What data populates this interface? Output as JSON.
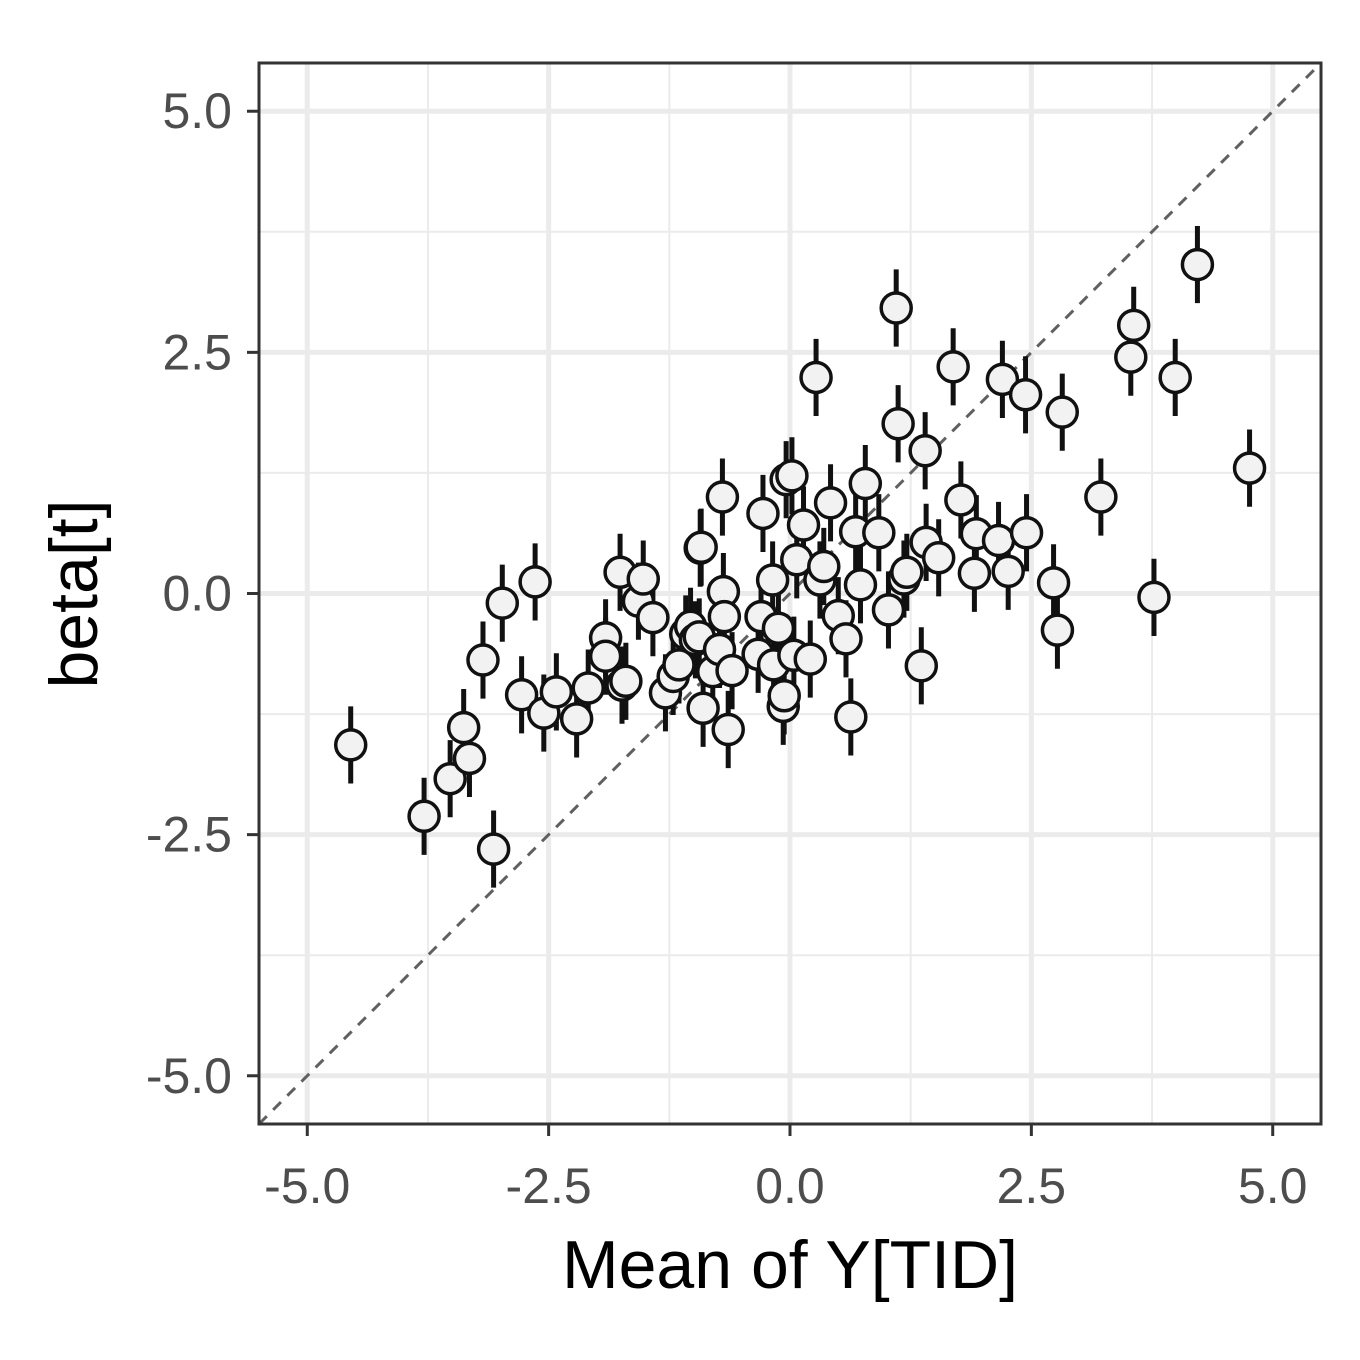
{
  "chart_data": {
    "type": "scatter",
    "title": "",
    "xlabel": "Mean of Y[TID]",
    "ylabel": "beta[t]",
    "xlim": [
      -5.5,
      5.5
    ],
    "ylim": [
      -5.5,
      5.5
    ],
    "x_ticks": [
      "-5.0",
      "-2.5",
      "0.0",
      "2.5",
      "5.0"
    ],
    "y_ticks": [
      "-5.0",
      "-2.5",
      "0.0",
      "2.5",
      "5.0"
    ],
    "x_tick_values": [
      -5,
      -2.5,
      0,
      2.5,
      5
    ],
    "y_tick_values": [
      -5,
      -2.5,
      0,
      2.5,
      5
    ],
    "grid": true,
    "reference_line": "y = x (dashed)",
    "error_bar_halfwidth": 0.4,
    "points": [
      {
        "x": -4.55,
        "y": -1.57
      },
      {
        "x": -3.79,
        "y": -2.31
      },
      {
        "x": -3.52,
        "y": -1.92
      },
      {
        "x": -3.38,
        "y": -1.39
      },
      {
        "x": -3.32,
        "y": -1.71
      },
      {
        "x": -3.18,
        "y": -0.69
      },
      {
        "x": -3.07,
        "y": -2.65
      },
      {
        "x": -2.98,
        "y": -0.1
      },
      {
        "x": -2.78,
        "y": -1.05
      },
      {
        "x": -2.64,
        "y": 0.12
      },
      {
        "x": -2.55,
        "y": -1.24
      },
      {
        "x": -2.42,
        "y": -1.02
      },
      {
        "x": -2.21,
        "y": -1.3
      },
      {
        "x": -2.09,
        "y": -0.98
      },
      {
        "x": -1.91,
        "y": -0.46
      },
      {
        "x": -1.91,
        "y": -0.65
      },
      {
        "x": -1.76,
        "y": 0.22
      },
      {
        "x": -1.74,
        "y": -0.95
      },
      {
        "x": -1.7,
        "y": -0.91
      },
      {
        "x": -1.57,
        "y": -0.08
      },
      {
        "x": -1.52,
        "y": 0.15
      },
      {
        "x": -1.42,
        "y": -0.25
      },
      {
        "x": -1.29,
        "y": -1.03
      },
      {
        "x": -1.21,
        "y": -0.86
      },
      {
        "x": -1.15,
        "y": -0.74
      },
      {
        "x": -1.08,
        "y": -0.42
      },
      {
        "x": -1.03,
        "y": -0.34
      },
      {
        "x": -0.98,
        "y": -0.48
      },
      {
        "x": -0.94,
        "y": -0.45
      },
      {
        "x": -0.93,
        "y": 0.47
      },
      {
        "x": -0.92,
        "y": 0.48
      },
      {
        "x": -0.9,
        "y": -1.19
      },
      {
        "x": -0.8,
        "y": -0.81
      },
      {
        "x": -0.73,
        "y": -0.58
      },
      {
        "x": -0.7,
        "y": 1.0
      },
      {
        "x": -0.69,
        "y": 0.02
      },
      {
        "x": -0.68,
        "y": -0.24
      },
      {
        "x": -0.64,
        "y": -1.41
      },
      {
        "x": -0.6,
        "y": -0.8
      },
      {
        "x": -0.33,
        "y": -0.63
      },
      {
        "x": -0.3,
        "y": -0.24
      },
      {
        "x": -0.28,
        "y": 0.83
      },
      {
        "x": -0.18,
        "y": 0.14
      },
      {
        "x": -0.17,
        "y": -0.74
      },
      {
        "x": -0.12,
        "y": -0.36
      },
      {
        "x": -0.07,
        "y": -1.17
      },
      {
        "x": -0.06,
        "y": -1.06
      },
      {
        "x": -0.04,
        "y": 1.18
      },
      {
        "x": 0.02,
        "y": 1.22
      },
      {
        "x": 0.04,
        "y": -0.64
      },
      {
        "x": 0.07,
        "y": 0.35
      },
      {
        "x": 0.14,
        "y": 0.71
      },
      {
        "x": 0.21,
        "y": -0.68
      },
      {
        "x": 0.27,
        "y": 2.24
      },
      {
        "x": 0.31,
        "y": 0.14
      },
      {
        "x": 0.35,
        "y": 0.28
      },
      {
        "x": 0.42,
        "y": 0.94
      },
      {
        "x": 0.5,
        "y": -0.23
      },
      {
        "x": 0.58,
        "y": -0.47
      },
      {
        "x": 0.63,
        "y": -1.28
      },
      {
        "x": 0.68,
        "y": 0.64
      },
      {
        "x": 0.73,
        "y": 0.09
      },
      {
        "x": 0.78,
        "y": 1.14
      },
      {
        "x": 0.92,
        "y": 0.63
      },
      {
        "x": 1.02,
        "y": -0.17
      },
      {
        "x": 1.1,
        "y": 2.96
      },
      {
        "x": 1.12,
        "y": 1.76
      },
      {
        "x": 1.18,
        "y": 0.15
      },
      {
        "x": 1.21,
        "y": 0.22
      },
      {
        "x": 1.36,
        "y": -0.75
      },
      {
        "x": 1.4,
        "y": 1.48
      },
      {
        "x": 1.41,
        "y": 0.53
      },
      {
        "x": 1.54,
        "y": 0.37
      },
      {
        "x": 1.69,
        "y": 2.35
      },
      {
        "x": 1.77,
        "y": 0.97
      },
      {
        "x": 1.91,
        "y": 0.21
      },
      {
        "x": 1.93,
        "y": 0.62
      },
      {
        "x": 2.16,
        "y": 0.55
      },
      {
        "x": 2.2,
        "y": 2.22
      },
      {
        "x": 2.26,
        "y": 0.23
      },
      {
        "x": 2.44,
        "y": 2.06
      },
      {
        "x": 2.45,
        "y": 0.63
      },
      {
        "x": 2.73,
        "y": 0.11
      },
      {
        "x": 2.77,
        "y": -0.38
      },
      {
        "x": 2.82,
        "y": 1.88
      },
      {
        "x": 3.22,
        "y": 1.0
      },
      {
        "x": 3.53,
        "y": 2.45
      },
      {
        "x": 3.56,
        "y": 2.78
      },
      {
        "x": 3.77,
        "y": -0.04
      },
      {
        "x": 3.99,
        "y": 2.24
      },
      {
        "x": 4.22,
        "y": 3.41
      },
      {
        "x": 4.76,
        "y": 1.3
      }
    ]
  }
}
